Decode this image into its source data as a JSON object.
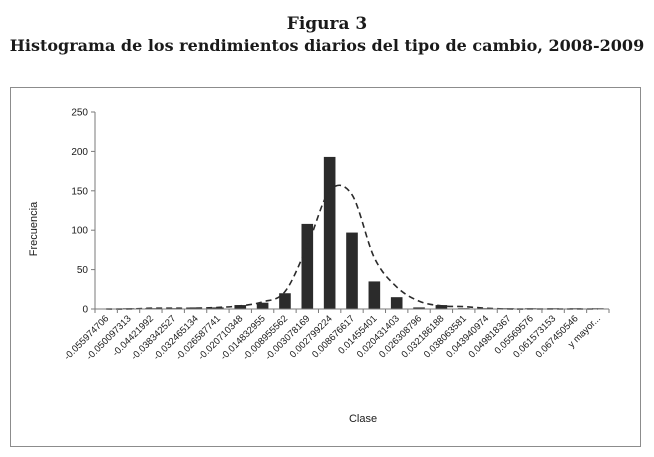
{
  "figure": {
    "label": "Figura 3",
    "title": "Histograma de los rendimientos diarios del tipo de cambio, 2008-2009"
  },
  "chart_data": {
    "type": "bar",
    "title": "Histograma de los rendimientos diarios del tipo de cambio, 2008-2009",
    "xlabel": "Clase",
    "ylabel": "Frecuencia",
    "ylim": [
      0,
      250
    ],
    "yticks": [
      0,
      50,
      100,
      150,
      200,
      250
    ],
    "grid": false,
    "categories": [
      "-0.055974706",
      "-0.050097313",
      "-0.04421992",
      "-0.038342527",
      "-0.032465134",
      "-0.026587741",
      "-0.020710348",
      "-0.014832955",
      "-0.008955562",
      "-0.003078169",
      "0.002799224",
      "0.008676617",
      "0.01455401",
      "0.020431403",
      "0.026308796",
      "0.032186188",
      "0.038063581",
      "0.043940974",
      "0.049818367",
      "0.05569576",
      "0.061573153",
      "0.067450546",
      "y mayor..."
    ],
    "series": [
      {
        "type": "bar",
        "color": "#2b2b2b",
        "values": [
          0,
          1,
          1,
          1,
          2,
          2,
          5,
          8,
          20,
          108,
          193,
          97,
          35,
          15,
          2,
          5,
          1,
          1,
          1,
          1,
          1,
          1,
          1
        ]
      },
      {
        "type": "line",
        "style": "dashed",
        "color": "#2b2b2b",
        "values": [
          0,
          0,
          1,
          1,
          1,
          2,
          4,
          9,
          22,
          80,
          150,
          145,
          65,
          28,
          10,
          4,
          3,
          1,
          0,
          0,
          0,
          0,
          0
        ]
      }
    ]
  }
}
